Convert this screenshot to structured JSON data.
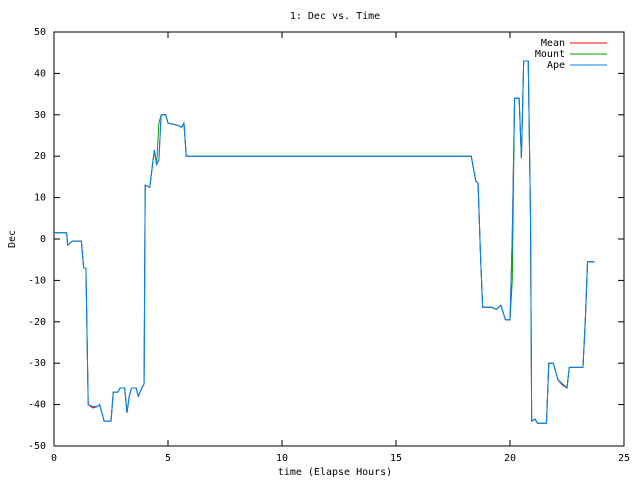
{
  "chart_data": {
    "type": "line",
    "title": "1: Dec vs. Time",
    "xlabel": "time (Elapse Hours)",
    "ylabel": "Dec",
    "xlim": [
      0,
      25
    ],
    "xticks": [
      0,
      5,
      10,
      15,
      20,
      25
    ],
    "ylim": [
      -50,
      50
    ],
    "yticks": [
      -50,
      -40,
      -30,
      -20,
      -10,
      0,
      10,
      20,
      30,
      40,
      50
    ],
    "legend": "top-right",
    "x": [
      0,
      0.55,
      0.6,
      0.7,
      0.8,
      1.2,
      1.3,
      1.4,
      1.5,
      1.7,
      1.9,
      2.0,
      2.1,
      2.2,
      2.5,
      2.6,
      2.8,
      2.9,
      3.1,
      3.2,
      3.3,
      3.4,
      3.6,
      3.7,
      3.85,
      3.95,
      4.0,
      4.2,
      4.3,
      4.4,
      4.5,
      4.6,
      4.7,
      4.9,
      5.0,
      5.4,
      5.6,
      5.7,
      5.8,
      18.3,
      18.5,
      18.6,
      18.7,
      18.8,
      19.2,
      19.4,
      19.6,
      19.8,
      20.0,
      20.1,
      20.2,
      20.4,
      20.5,
      20.6,
      20.8,
      20.9,
      20.95,
      21.1,
      21.2,
      21.6,
      21.7,
      21.9,
      22.0,
      22.1,
      22.3,
      22.5,
      22.6,
      23.2,
      23.3,
      23.4,
      23.7
    ],
    "series": [
      {
        "name": "Mean",
        "color": "#ff0000",
        "values": [
          1.5,
          1.5,
          -1.5,
          -1,
          -0.5,
          -0.5,
          -7,
          -7,
          -40,
          -40.8,
          -40.5,
          -40,
          -42,
          -44,
          -44,
          -37,
          -37,
          -36,
          -36,
          -42,
          -38,
          -36,
          -36,
          -38,
          -36,
          -35,
          13,
          12.5,
          17,
          21.5,
          18,
          19,
          30,
          30,
          28,
          27.5,
          27,
          28,
          20,
          20,
          14,
          13.5,
          -3,
          -16.5,
          -16.5,
          -17,
          -16,
          -19.5,
          -19.5,
          1,
          34,
          34,
          19.5,
          43,
          43,
          5,
          -44,
          -43.5,
          -44.5,
          -44.5,
          -30,
          -30,
          -32,
          -34,
          -35.3,
          -36,
          -31,
          -31,
          -20,
          -5.5,
          -5.5
        ]
      },
      {
        "name": "Mount",
        "color": "#00a000",
        "values": [
          1.5,
          1.5,
          -1.5,
          -1,
          -0.5,
          -0.5,
          -7,
          -7,
          -40,
          -40.5,
          -40.5,
          -40,
          -42,
          -44,
          -44,
          -37,
          -37,
          -36,
          -36,
          -42,
          -38,
          -36,
          -36,
          -38,
          -36,
          -35,
          13,
          12.5,
          17,
          21.5,
          18,
          28,
          30,
          30,
          28,
          27.5,
          27,
          28,
          20,
          20,
          14,
          13.5,
          -3,
          -16.5,
          -16.5,
          -17,
          -16,
          -19.5,
          -19.5,
          -10,
          34,
          34,
          19.5,
          43,
          43,
          5,
          -44,
          -43.5,
          -44.5,
          -44.5,
          -30,
          -30,
          -32,
          -34,
          -35,
          -36,
          -31,
          -31,
          -20,
          -5.5,
          -5.5
        ]
      },
      {
        "name": "Ape",
        "color": "#0080ff",
        "values": [
          1.5,
          1.5,
          -1.5,
          -1,
          -0.5,
          -0.5,
          -7,
          -7,
          -40,
          -40.5,
          -40.5,
          -40,
          -42,
          -44,
          -44,
          -37,
          -37,
          -36,
          -36,
          -42,
          -38,
          -36,
          -36,
          -38,
          -36,
          -35,
          13,
          12.5,
          17,
          21.5,
          18,
          19,
          30,
          30,
          28,
          27.5,
          27,
          28,
          20,
          20,
          14,
          13.5,
          -3,
          -16.5,
          -16.5,
          -17,
          -16,
          -19.5,
          -19.5,
          1,
          34,
          34,
          19.5,
          43,
          43,
          5,
          -44,
          -43.5,
          -44.5,
          -44.5,
          -30,
          -30,
          -32,
          -34,
          -35,
          -36,
          -31,
          -31,
          -20,
          -5.5,
          -5.5
        ]
      }
    ]
  }
}
